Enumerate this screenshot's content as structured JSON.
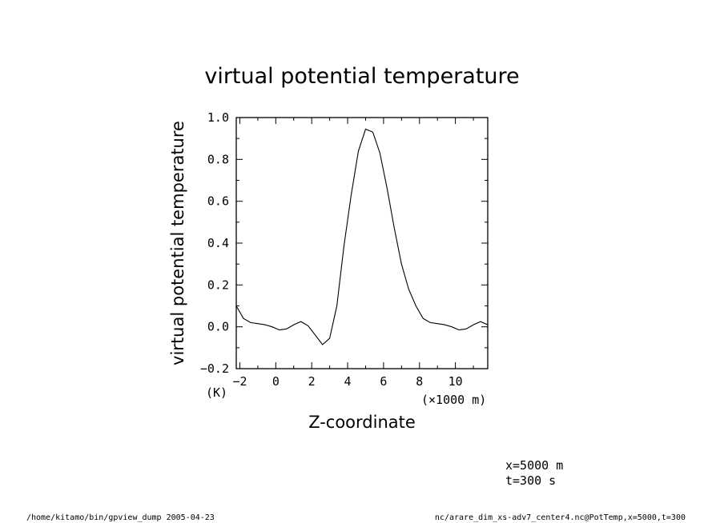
{
  "chart_data": {
    "type": "line",
    "title": "virtual potential temperature",
    "ylabel": "virtual potential temperature",
    "yunit": "(K)",
    "xlabel": "Z-coordinate",
    "xunit": "(×1000 m)",
    "xlim": [
      -2.2,
      11.8
    ],
    "ylim": [
      -0.2,
      1.0
    ],
    "xticks": [
      -2,
      0,
      2,
      4,
      6,
      8,
      10
    ],
    "xtick_labels": [
      "−2",
      "0",
      "2",
      "4",
      "6",
      "8",
      "10"
    ],
    "yticks": [
      -0.2,
      0.0,
      0.2,
      0.4,
      0.6,
      0.8,
      1.0
    ],
    "ytick_labels": [
      "−0.2",
      "0.0",
      "0.2",
      "0.4",
      "0.6",
      "0.8",
      "1.0"
    ],
    "grid": false,
    "series": [
      {
        "x": [
          -2.2,
          -1.8,
          -1.4,
          -1.0,
          -0.6,
          -0.2,
          0.2,
          0.6,
          1.0,
          1.4,
          1.8,
          2.2,
          2.6,
          3.0,
          3.4,
          3.8,
          4.2,
          4.6,
          5.0,
          5.4,
          5.8,
          6.2,
          6.6,
          7.0,
          7.4,
          7.8,
          8.2,
          8.6,
          9.0,
          9.4,
          9.8,
          10.2,
          10.6,
          11.0,
          11.4,
          11.8
        ],
        "y": [
          0.1,
          0.04,
          0.02,
          0.015,
          0.01,
          0.0,
          -0.015,
          -0.01,
          0.01,
          0.025,
          0.005,
          -0.04,
          -0.085,
          -0.055,
          0.1,
          0.39,
          0.63,
          0.84,
          0.945,
          0.93,
          0.83,
          0.66,
          0.47,
          0.3,
          0.18,
          0.1,
          0.04,
          0.02,
          0.015,
          0.01,
          0.0,
          -0.015,
          -0.01,
          0.01,
          0.025,
          0.01
        ]
      }
    ]
  },
  "annotations": {
    "x_value": "x=5000  m",
    "t_value": "t=300  s"
  },
  "footer": {
    "left": "/home/kitamo/bin/gpview_dump  2005-04-23",
    "right": "nc/arare_dim_xs-adv7_center4.nc@PotTemp,x=5000,t=300"
  }
}
